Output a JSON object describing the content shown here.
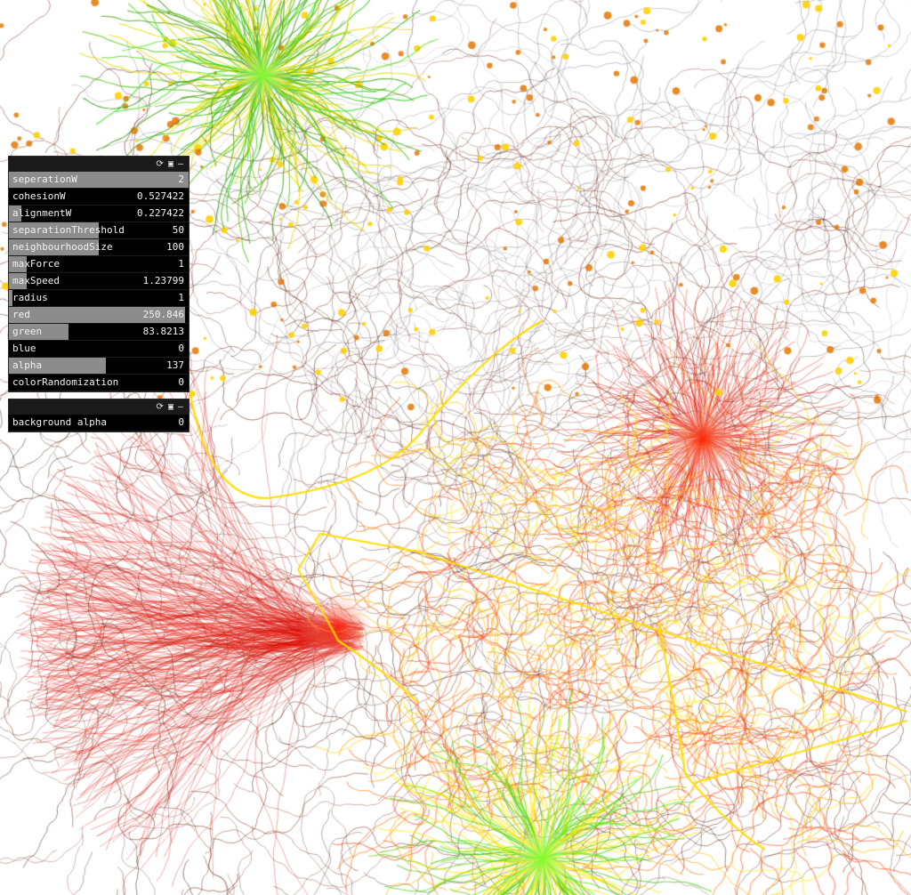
{
  "panel1": {
    "params": [
      {
        "name": "seperationW",
        "value": "2",
        "fill": 1.0
      },
      {
        "name": "cohesionW",
        "value": "0.527422",
        "fill": 0.0
      },
      {
        "name": "alignmentW",
        "value": "0.227422",
        "fill": 0.07
      },
      {
        "name": "separationThreshold",
        "value": "50",
        "fill": 0.5
      },
      {
        "name": "neighbourhoodSize",
        "value": "100",
        "fill": 0.5
      },
      {
        "name": "maxForce",
        "value": "1",
        "fill": 0.1
      },
      {
        "name": "maxSpeed",
        "value": "1.23799",
        "fill": 0.1
      },
      {
        "name": "radius",
        "value": "1",
        "fill": 0.02
      },
      {
        "name": "red",
        "value": "250.846",
        "fill": 0.98
      },
      {
        "name": "green",
        "value": "83.8213",
        "fill": 0.33
      },
      {
        "name": "blue",
        "value": "0",
        "fill": 0.0
      },
      {
        "name": "alpha",
        "value": "137",
        "fill": 0.54
      },
      {
        "name": "colorRandomization",
        "value": "0",
        "fill": 0.0
      }
    ]
  },
  "panel2": {
    "params": [
      {
        "name": "background alpha",
        "value": "0",
        "fill": 0.0
      }
    ]
  },
  "header_icons": [
    "refresh-icon",
    "save-icon",
    "minimize-icon"
  ],
  "colors": {
    "panel_bg": "#1a1a1a",
    "slider_fill": "#8c8c8c",
    "trail_dark": "#5a2a1a",
    "trail_red": "#e01010",
    "trail_yellow": "#ffe800",
    "trail_green": "#33cc11"
  }
}
